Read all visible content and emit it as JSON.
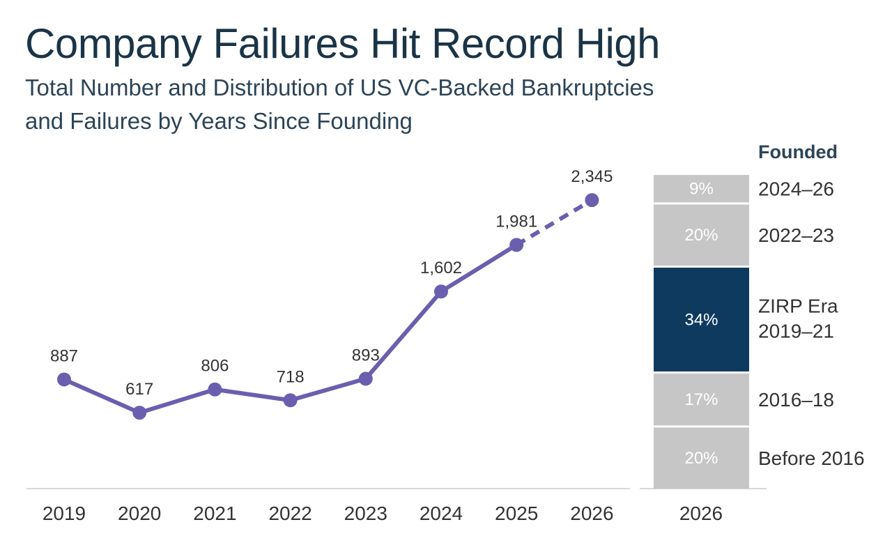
{
  "header": {
    "title": "Company Failures Hit Record High",
    "subtitle_line1": "Total Number and Distribution of US VC-Backed Bankruptcies",
    "subtitle_line2": "and Failures by Years Since Founding"
  },
  "colors": {
    "line": "#6a5fae",
    "highlight_bar": "#0e3a5f",
    "grey_bar": "#c6c6c6",
    "axis": "#d8d8d8",
    "text": "#333333"
  },
  "chart_data": [
    {
      "type": "line",
      "categories": [
        "2019",
        "2020",
        "2021",
        "2022",
        "2023",
        "2024",
        "2025",
        "2026"
      ],
      "values": [
        887,
        617,
        806,
        718,
        893,
        1602,
        1981,
        2345
      ],
      "value_labels": [
        "887",
        "617",
        "806",
        "718",
        "893",
        "1,602",
        "1,981",
        "2,345"
      ],
      "projected_from_index": 6,
      "line_style_projection": "dashed",
      "grid": false
    },
    {
      "type": "bar",
      "stacked": true,
      "categories": [
        "2026"
      ],
      "legend_title": "Founded",
      "segments": [
        {
          "name": "2024–26",
          "value": 9,
          "label": "9%"
        },
        {
          "name": "2022–23",
          "value": 20,
          "label": "20%"
        },
        {
          "name_line1": "ZIRP Era",
          "name_line2": "2019–21",
          "value": 34,
          "label": "34%",
          "highlight": true
        },
        {
          "name": "2016–18",
          "value": 17,
          "label": "17%"
        },
        {
          "name": "Before 2016",
          "value": 20,
          "label": "20%"
        }
      ]
    }
  ]
}
